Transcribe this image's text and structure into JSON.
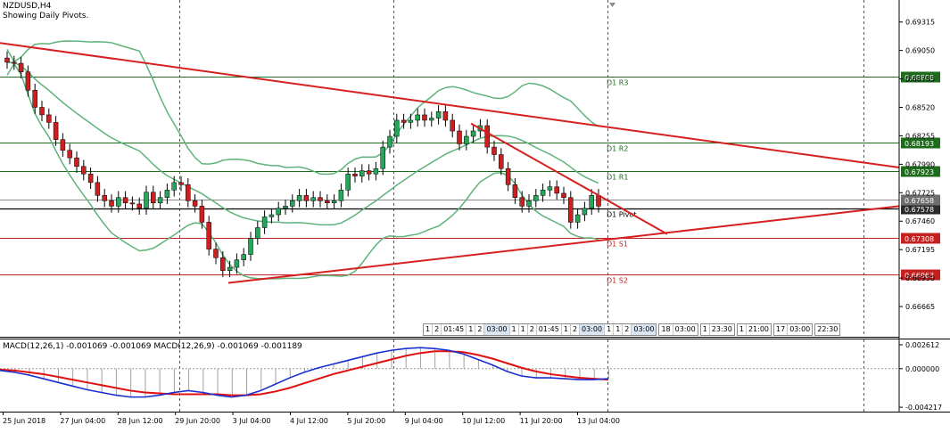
{
  "header": {
    "symbol": "NZDUSD,H4",
    "note": "Showing Daily Pivots."
  },
  "colors": {
    "background": "#ffffff",
    "bull_candle": "#26a65b",
    "bear_candle": "#cc1f1f",
    "bollinger": "#5fb37a",
    "trendline": "#d62020",
    "pivot_r": "#1e6b1e",
    "pivot_s": "#c52020",
    "macd_main": "#1a2fd0",
    "macd_signal": "#e01010",
    "histogram": "#a0a0a0"
  },
  "chart_data": [
    {
      "type": "candlestick",
      "title": "NZDUSD,H4",
      "subtitle": "Showing Daily Pivots.",
      "ylim": [
        0.664,
        0.6947
      ],
      "y_ticks": [
        "0.69315",
        "0.69050",
        "0.68785",
        "0.68520",
        "0.68255",
        "0.67990",
        "0.67725",
        "0.67460",
        "0.67195",
        "0.66930",
        "0.66665"
      ],
      "x_ticks": [
        "25 Jun 2018",
        "27 Jun 04:00",
        "28 Jun 12:00",
        "29 Jun 20:00",
        "3 Jul 04:00",
        "4 Jul 12:00",
        "5 Jul 20:00",
        "9 Jul 04:00",
        "10 Jul 12:00",
        "11 Jul 20:00",
        "13 Jul 04:00"
      ],
      "pivots": [
        {
          "label": "D1 R3",
          "value": 0.68808,
          "price_label": "0.68808"
        },
        {
          "label": "D1 R2",
          "value": 0.68193,
          "price_label": "0.68193"
        },
        {
          "label": "D1 R1",
          "value": 0.67923,
          "price_label": "0.67923"
        },
        {
          "label": "D1 Pivot",
          "value": 0.67578,
          "price_label": "0.67578"
        },
        {
          "label": "D1 S1",
          "value": 0.67308,
          "price_label": "0.67308"
        },
        {
          "label": "D1 S2",
          "value": 0.66963,
          "price_label": "0.66963"
        }
      ],
      "current_price_labels": [
        "0.67658",
        "0.67578"
      ],
      "candles_close": [
        0.6894,
        0.6893,
        0.6885,
        0.6868,
        0.6852,
        0.6845,
        0.6838,
        0.6822,
        0.6812,
        0.6805,
        0.6797,
        0.679,
        0.6782,
        0.677,
        0.6765,
        0.676,
        0.6768,
        0.6763,
        0.6762,
        0.6758,
        0.6773,
        0.6763,
        0.6768,
        0.6775,
        0.6782,
        0.678,
        0.6765,
        0.676,
        0.6745,
        0.672,
        0.6712,
        0.67,
        0.6703,
        0.671,
        0.6715,
        0.673,
        0.674,
        0.675,
        0.6752,
        0.6758,
        0.676,
        0.6765,
        0.677,
        0.6765,
        0.6768,
        0.6765,
        0.6763,
        0.6765,
        0.6775,
        0.679,
        0.6788,
        0.6793,
        0.679,
        0.6795,
        0.6815,
        0.6825,
        0.684,
        0.6838,
        0.684,
        0.6845,
        0.684,
        0.6842,
        0.6848,
        0.684,
        0.683,
        0.6818,
        0.6825,
        0.683,
        0.6835,
        0.6815,
        0.6808,
        0.6795,
        0.678,
        0.6768,
        0.676,
        0.6765,
        0.677,
        0.6775,
        0.6778,
        0.6772,
        0.6768,
        0.6745,
        0.6752,
        0.6758,
        0.677,
        0.676
      ]
    },
    {
      "type": "line",
      "title": "MACD(12,26,1) -0.001069 -0.001069 MACD(12,26,9) -0.001069 -0.001189",
      "ylim": [
        -0.0045,
        0.0029
      ],
      "y_ticks": [
        "0.002612",
        "0.000000",
        "-0.004217"
      ],
      "series": [
        {
          "name": "MACD(12,26,1)",
          "values": [
            -0.0002,
            -0.0004,
            -0.0007,
            -0.0011,
            -0.0015,
            -0.0019,
            -0.0023,
            -0.0026,
            -0.0029,
            -0.0031,
            -0.0031,
            -0.0029,
            -0.0026,
            -0.0024,
            -0.0026,
            -0.0029,
            -0.0031,
            -0.0029,
            -0.0024,
            -0.0017,
            -0.001,
            -0.0004,
            0.0001,
            0.0005,
            0.0009,
            0.0013,
            0.0017,
            0.002,
            0.0022,
            0.0023,
            0.0022,
            0.002,
            0.0016,
            0.001,
            0.0004,
            -0.0003,
            -0.0008,
            -0.001,
            -0.001,
            -0.0011,
            -0.0012,
            -0.0012,
            -0.0011
          ]
        },
        {
          "name": "MACD(12,26,9)",
          "values": [
            -0.0001,
            -0.0002,
            -0.0004,
            -0.0006,
            -0.0009,
            -0.0012,
            -0.0015,
            -0.0018,
            -0.0021,
            -0.0024,
            -0.0026,
            -0.0027,
            -0.0028,
            -0.0028,
            -0.0028,
            -0.0028,
            -0.0029,
            -0.0029,
            -0.0028,
            -0.0025,
            -0.0021,
            -0.0016,
            -0.0011,
            -0.0006,
            -0.0002,
            0.0002,
            0.0006,
            0.001,
            0.0014,
            0.0017,
            0.0019,
            0.0019,
            0.0018,
            0.0015,
            0.0011,
            0.0006,
            0.0001,
            -0.0003,
            -0.0006,
            -0.0008,
            -0.001,
            -0.0011,
            -0.0012
          ]
        }
      ]
    }
  ],
  "timeframe_strip": [
    [
      "1",
      "2",
      "01:45",
      "1",
      "2",
      "03:00",
      "1",
      "1",
      "2",
      "01:45",
      "1",
      "2",
      "03:00",
      "1",
      "1",
      "2",
      "03:00"
    ],
    [
      "18",
      "03:00"
    ],
    [
      "1",
      "23:30"
    ],
    [
      "1",
      "21:00"
    ],
    [
      "17",
      "03:00"
    ],
    [
      "22:30"
    ]
  ]
}
